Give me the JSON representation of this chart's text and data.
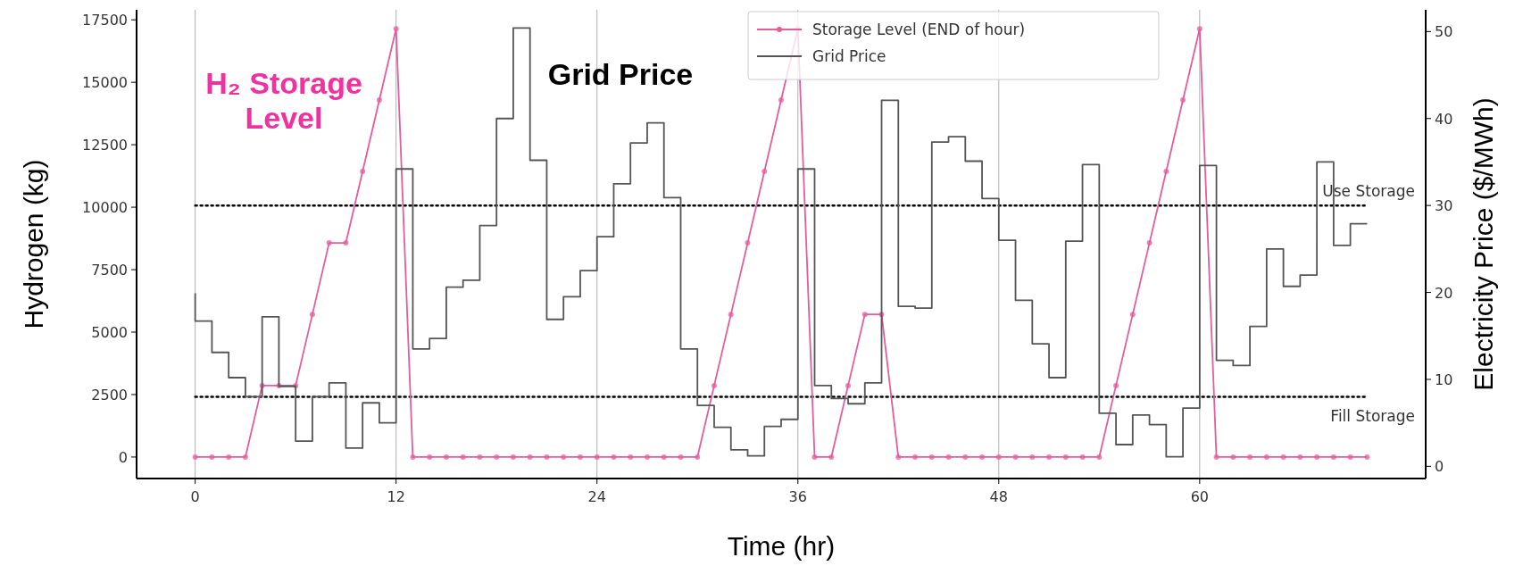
{
  "chart_data": {
    "type": "line",
    "xlabel": "Time (hr)",
    "ylabel": "Hydrogen (kg)",
    "y2label": "Electricity Price ($/MWh)",
    "x": [
      0,
      1,
      2,
      3,
      4,
      5,
      6,
      7,
      8,
      9,
      10,
      11,
      12,
      13,
      14,
      15,
      16,
      17,
      18,
      19,
      20,
      21,
      22,
      23,
      24,
      25,
      26,
      27,
      28,
      29,
      30,
      31,
      32,
      33,
      34,
      35,
      36,
      37,
      38,
      39,
      40,
      41,
      42,
      43,
      44,
      45,
      46,
      47,
      48,
      49,
      50,
      51,
      52,
      53,
      54,
      55,
      56,
      57,
      58,
      59,
      60,
      61,
      62,
      63,
      64,
      65,
      66,
      67,
      68,
      69,
      70
    ],
    "series": [
      {
        "name": "Storage Level (END of hour)",
        "axis": "y",
        "color": "#e35d9c",
        "marker": "circle",
        "values": [
          0,
          0,
          0,
          0,
          2860,
          2860,
          2860,
          5710,
          8570,
          8570,
          11430,
          14290,
          17140,
          0,
          0,
          0,
          0,
          0,
          0,
          0,
          0,
          0,
          0,
          0,
          0,
          0,
          0,
          0,
          0,
          0,
          0,
          2860,
          5710,
          8570,
          11430,
          14290,
          17140,
          0,
          0,
          2860,
          5710,
          5710,
          0,
          0,
          0,
          0,
          0,
          0,
          0,
          0,
          0,
          0,
          0,
          0,
          0,
          2860,
          5710,
          8570,
          11430,
          14290,
          17140,
          0,
          0,
          0,
          0,
          0,
          0,
          0,
          0,
          0,
          0
        ]
      },
      {
        "name": "Grid Price",
        "type": "step",
        "axis": "y2",
        "color": "#555555",
        "values": [
          19.9,
          16.7,
          13.1,
          10.2,
          8.0,
          17.2,
          9.2,
          2.9,
          8.0,
          9.6,
          2.1,
          7.3,
          5.0,
          34.2,
          13.5,
          14.7,
          20.6,
          21.4,
          27.7,
          40.0,
          50.4,
          35.2,
          16.9,
          19.5,
          22.5,
          26.4,
          32.5,
          37.2,
          39.5,
          30.9,
          13.5,
          7.0,
          4.5,
          1.9,
          1.2,
          4.6,
          5.4,
          34.2,
          9.3,
          7.8,
          7.2,
          9.6,
          42.1,
          18.4,
          18.2,
          37.3,
          37.9,
          35.1,
          30.8,
          26.0,
          19.1,
          14.1,
          10.2,
          25.9,
          34.7,
          6.1,
          2.5,
          5.9,
          4.8,
          1.1,
          6.7,
          34.6,
          12.2,
          11.6,
          16.1,
          25.0,
          20.7,
          22.0,
          35.0,
          25.4,
          27.9
        ]
      }
    ],
    "xlim": [
      -3.5,
      73.5
    ],
    "xticks": [
      0,
      12,
      24,
      36,
      48,
      60
    ],
    "ylim": [
      -860,
      17900
    ],
    "yticks": [
      0,
      2500,
      5000,
      7500,
      10000,
      12500,
      15000,
      17500
    ],
    "y2lim": [
      -1.4,
      52.5
    ],
    "y2ticks": [
      0,
      10,
      20,
      30,
      40,
      50
    ],
    "ref_lines": [
      {
        "axis": "y2",
        "value": 30,
        "label": "Use Storage",
        "color": "#000000",
        "line_style": "dotted"
      },
      {
        "axis": "y2",
        "value": 8,
        "label": "Fill Storage",
        "color": "#000000",
        "line_style": "dotted"
      }
    ],
    "annotations": [
      "H₂ Storage Level",
      "Grid Price"
    ],
    "grid": "x",
    "legend": "top right"
  }
}
